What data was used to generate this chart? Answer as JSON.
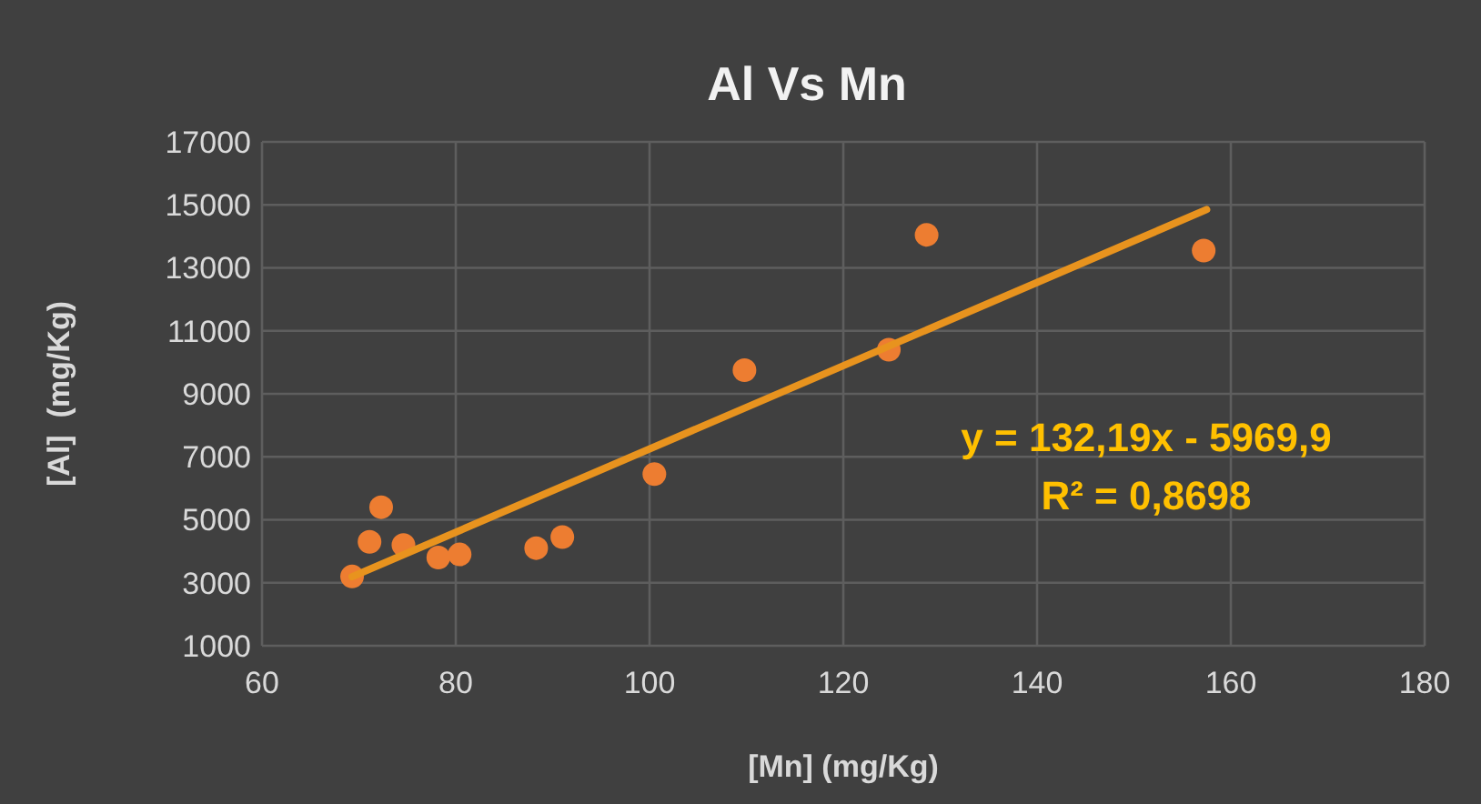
{
  "chart_data": {
    "type": "scatter",
    "title": "Al Vs Mn",
    "xlabel": "[Mn] (mg/Kg)",
    "ylabel": "[Al]  (mg/Kg)",
    "xlim": [
      60,
      180
    ],
    "xticks": [
      60,
      80,
      100,
      120,
      140,
      160,
      180
    ],
    "ylim": [
      1000,
      17000
    ],
    "yticks": [
      1000,
      3000,
      5000,
      7000,
      9000,
      11000,
      13000,
      15000,
      17000
    ],
    "grid": true,
    "marker": "circle",
    "series": [
      {
        "type": "scatter",
        "color": "#ed7d31",
        "x": [
          69.3,
          71.1,
          72.3,
          74.6,
          78.2,
          80.4,
          88.3,
          91.0,
          100.5,
          109.8,
          124.7,
          128.6,
          157.2
        ],
        "values": [
          3200,
          4300,
          5400,
          4200,
          3800,
          3900,
          4100,
          4450,
          6450,
          9750,
          10400,
          14050,
          13550
        ]
      },
      {
        "type": "line",
        "color": "#e8931e",
        "marker": "none",
        "x": [
          69.3,
          157.5
        ],
        "values": [
          3190,
          14850
        ]
      }
    ],
    "annotations": [
      "y = 132,19x - 5969,9\nR² = 0,8698"
    ]
  }
}
